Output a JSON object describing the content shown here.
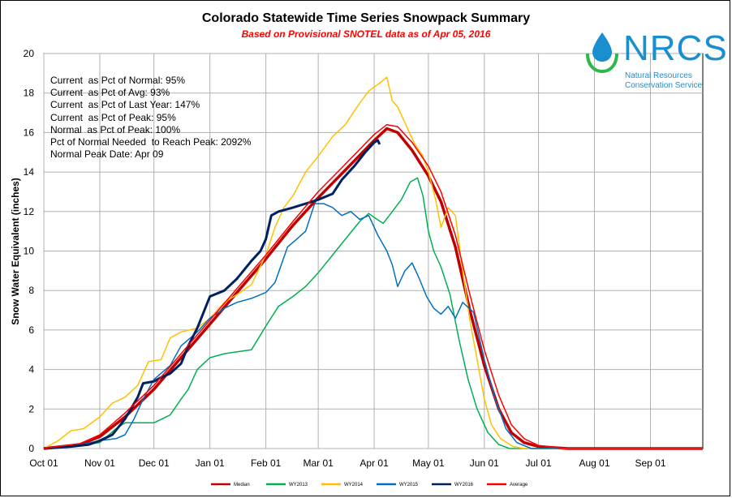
{
  "chart_data": {
    "type": "line",
    "title": "Colorado Statewide Time Series Snowpack Summary",
    "subtitle": "Based on Provisional SNOTEL data as of Apr 05, 2016",
    "ylabel": "Snow Water Equivalent (inches)",
    "xlabel": "",
    "ylim": [
      0,
      20
    ],
    "yticks": [
      0,
      2,
      4,
      6,
      8,
      10,
      12,
      14,
      16,
      18,
      20
    ],
    "xlim": [
      0,
      365
    ],
    "xticks": [
      {
        "label": "Oct 01",
        "day": 0
      },
      {
        "label": "Nov 01",
        "day": 31
      },
      {
        "label": "Dec 01",
        "day": 61
      },
      {
        "label": "Jan 01",
        "day": 92
      },
      {
        "label": "Feb 01",
        "day": 123
      },
      {
        "label": "Mar 01",
        "day": 152
      },
      {
        "label": "Apr 01",
        "day": 183
      },
      {
        "label": "May 01",
        "day": 213
      },
      {
        "label": "Jun 01",
        "day": 244
      },
      {
        "label": "Jul 01",
        "day": 274
      },
      {
        "label": "Aug 01",
        "day": 305
      },
      {
        "label": "Sep 01",
        "day": 336
      }
    ],
    "grid": true,
    "legend_position": "bottom",
    "stats": [
      "Current  as Pct of Normal: 95%",
      "Current  as Pct of Avg: 93%",
      "Current  as Pct of Last Year: 147%",
      "Current  as Pct of Peak: 95%",
      "Normal  as Pct of Peak: 100%",
      "Pct of Normal Needed  to Reach Peak: 2092%",
      "Normal Peak Date: Apr 09"
    ],
    "series": [
      {
        "name": "Median",
        "color": "#c00000",
        "width": 3.5,
        "points": [
          [
            0,
            0
          ],
          [
            20,
            0.2
          ],
          [
            31,
            0.6
          ],
          [
            45,
            1.6
          ],
          [
            61,
            3.0
          ],
          [
            76,
            4.6
          ],
          [
            92,
            6.3
          ],
          [
            107,
            7.9
          ],
          [
            123,
            9.6
          ],
          [
            138,
            11.3
          ],
          [
            152,
            12.7
          ],
          [
            167,
            14.1
          ],
          [
            183,
            15.6
          ],
          [
            190,
            16.2
          ],
          [
            196,
            16.0
          ],
          [
            204,
            15.1
          ],
          [
            213,
            13.8
          ],
          [
            220,
            12.5
          ],
          [
            228,
            10.2
          ],
          [
            236,
            7.0
          ],
          [
            244,
            4.2
          ],
          [
            252,
            2.0
          ],
          [
            259,
            0.8
          ],
          [
            266,
            0.3
          ],
          [
            274,
            0.1
          ],
          [
            290,
            0
          ],
          [
            365,
            0
          ]
        ]
      },
      {
        "name": "WY2013",
        "color": "#00b050",
        "width": 1.5,
        "points": [
          [
            0,
            0
          ],
          [
            15,
            0.1
          ],
          [
            31,
            0.3
          ],
          [
            40,
            1.0
          ],
          [
            45,
            1.3
          ],
          [
            61,
            1.3
          ],
          [
            70,
            1.7
          ],
          [
            76,
            2.5
          ],
          [
            80,
            3.0
          ],
          [
            85,
            4.0
          ],
          [
            92,
            4.6
          ],
          [
            100,
            4.8
          ],
          [
            107,
            4.9
          ],
          [
            115,
            5.0
          ],
          [
            123,
            6.2
          ],
          [
            130,
            7.2
          ],
          [
            138,
            7.7
          ],
          [
            145,
            8.2
          ],
          [
            152,
            8.9
          ],
          [
            160,
            9.8
          ],
          [
            167,
            10.6
          ],
          [
            175,
            11.5
          ],
          [
            180,
            11.9
          ],
          [
            183,
            11.7
          ],
          [
            188,
            11.4
          ],
          [
            193,
            12.0
          ],
          [
            198,
            12.6
          ],
          [
            203,
            13.5
          ],
          [
            207,
            13.7
          ],
          [
            210,
            12.8
          ],
          [
            213,
            11.0
          ],
          [
            216,
            10.0
          ],
          [
            220,
            9.2
          ],
          [
            225,
            7.8
          ],
          [
            230,
            5.5
          ],
          [
            235,
            3.5
          ],
          [
            240,
            2.0
          ],
          [
            246,
            0.8
          ],
          [
            252,
            0.2
          ],
          [
            258,
            0
          ],
          [
            365,
            0
          ]
        ]
      },
      {
        "name": "WY2014",
        "color": "#ffc000",
        "width": 1.5,
        "points": [
          [
            0,
            0
          ],
          [
            8,
            0.4
          ],
          [
            15,
            0.9
          ],
          [
            22,
            1.0
          ],
          [
            31,
            1.6
          ],
          [
            38,
            2.3
          ],
          [
            45,
            2.6
          ],
          [
            52,
            3.2
          ],
          [
            58,
            4.4
          ],
          [
            65,
            4.5
          ],
          [
            70,
            5.6
          ],
          [
            76,
            5.9
          ],
          [
            85,
            6.1
          ],
          [
            92,
            6.6
          ],
          [
            100,
            7.4
          ],
          [
            107,
            7.8
          ],
          [
            115,
            8.3
          ],
          [
            123,
            9.8
          ],
          [
            128,
            11.2
          ],
          [
            133,
            12.2
          ],
          [
            138,
            12.8
          ],
          [
            145,
            14.0
          ],
          [
            152,
            14.8
          ],
          [
            160,
            15.8
          ],
          [
            167,
            16.4
          ],
          [
            175,
            17.5
          ],
          [
            180,
            18.1
          ],
          [
            186,
            18.5
          ],
          [
            190,
            18.8
          ],
          [
            193,
            17.6
          ],
          [
            196,
            17.3
          ],
          [
            200,
            16.5
          ],
          [
            205,
            15.5
          ],
          [
            210,
            14.8
          ],
          [
            213,
            14.0
          ],
          [
            217,
            12.6
          ],
          [
            220,
            11.2
          ],
          [
            224,
            12.2
          ],
          [
            228,
            11.8
          ],
          [
            232,
            9.0
          ],
          [
            236,
            6.5
          ],
          [
            240,
            4.5
          ],
          [
            244,
            2.5
          ],
          [
            248,
            1.2
          ],
          [
            253,
            0.5
          ],
          [
            260,
            0.1
          ],
          [
            266,
            0
          ],
          [
            365,
            0
          ]
        ]
      },
      {
        "name": "WY2015",
        "color": "#0070c0",
        "width": 1.5,
        "points": [
          [
            0,
            0
          ],
          [
            15,
            0.1
          ],
          [
            31,
            0.4
          ],
          [
            40,
            0.5
          ],
          [
            45,
            0.7
          ],
          [
            50,
            1.5
          ],
          [
            55,
            2.5
          ],
          [
            61,
            3.5
          ],
          [
            70,
            4.2
          ],
          [
            76,
            5.2
          ],
          [
            85,
            5.9
          ],
          [
            92,
            6.6
          ],
          [
            100,
            7.1
          ],
          [
            107,
            7.4
          ],
          [
            115,
            7.6
          ],
          [
            123,
            7.9
          ],
          [
            128,
            8.4
          ],
          [
            135,
            10.2
          ],
          [
            140,
            10.6
          ],
          [
            145,
            11.0
          ],
          [
            150,
            12.4
          ],
          [
            155,
            12.4
          ],
          [
            160,
            12.2
          ],
          [
            165,
            11.8
          ],
          [
            170,
            12.0
          ],
          [
            175,
            11.6
          ],
          [
            180,
            11.8
          ],
          [
            185,
            10.8
          ],
          [
            190,
            10.0
          ],
          [
            193,
            9.3
          ],
          [
            196,
            8.2
          ],
          [
            200,
            9.0
          ],
          [
            204,
            9.4
          ],
          [
            208,
            8.6
          ],
          [
            212,
            7.7
          ],
          [
            216,
            7.1
          ],
          [
            220,
            6.8
          ],
          [
            224,
            7.2
          ],
          [
            228,
            6.6
          ],
          [
            232,
            7.4
          ],
          [
            238,
            6.9
          ],
          [
            244,
            4.5
          ],
          [
            250,
            2.5
          ],
          [
            256,
            1.0
          ],
          [
            262,
            0.3
          ],
          [
            270,
            0
          ],
          [
            365,
            0
          ]
        ]
      },
      {
        "name": "WY2016",
        "color": "#002060",
        "width": 3,
        "points": [
          [
            0,
            0
          ],
          [
            15,
            0.1
          ],
          [
            25,
            0.2
          ],
          [
            31,
            0.4
          ],
          [
            38,
            0.7
          ],
          [
            45,
            1.5
          ],
          [
            52,
            2.6
          ],
          [
            55,
            3.3
          ],
          [
            61,
            3.4
          ],
          [
            65,
            3.6
          ],
          [
            70,
            3.8
          ],
          [
            76,
            4.3
          ],
          [
            80,
            5.2
          ],
          [
            85,
            6.1
          ],
          [
            92,
            7.7
          ],
          [
            100,
            8.0
          ],
          [
            107,
            8.6
          ],
          [
            115,
            9.5
          ],
          [
            120,
            10.0
          ],
          [
            123,
            10.6
          ],
          [
            126,
            11.8
          ],
          [
            130,
            12.0
          ],
          [
            138,
            12.2
          ],
          [
            145,
            12.4
          ],
          [
            152,
            12.6
          ],
          [
            160,
            12.9
          ],
          [
            165,
            13.6
          ],
          [
            172,
            14.3
          ],
          [
            178,
            15.0
          ],
          [
            183,
            15.5
          ],
          [
            185,
            15.6
          ],
          [
            186,
            15.4
          ]
        ]
      },
      {
        "name": "Average",
        "color": "#ff0000",
        "width": 1.5,
        "points": [
          [
            0,
            0
          ],
          [
            20,
            0.25
          ],
          [
            31,
            0.7
          ],
          [
            45,
            1.8
          ],
          [
            61,
            3.2
          ],
          [
            76,
            4.8
          ],
          [
            92,
            6.5
          ],
          [
            107,
            8.1
          ],
          [
            123,
            9.8
          ],
          [
            138,
            11.5
          ],
          [
            152,
            13.0
          ],
          [
            167,
            14.4
          ],
          [
            183,
            15.9
          ],
          [
            190,
            16.4
          ],
          [
            196,
            16.3
          ],
          [
            204,
            15.5
          ],
          [
            213,
            14.3
          ],
          [
            220,
            13.0
          ],
          [
            228,
            10.8
          ],
          [
            236,
            7.8
          ],
          [
            244,
            5.0
          ],
          [
            252,
            2.7
          ],
          [
            259,
            1.2
          ],
          [
            266,
            0.5
          ],
          [
            274,
            0.15
          ],
          [
            290,
            0
          ],
          [
            365,
            0
          ]
        ]
      }
    ]
  },
  "logo": {
    "text": "NRCS",
    "sub1": "Natural Resources",
    "sub2": "Conservation Service",
    "color": "#1a8fd0"
  }
}
